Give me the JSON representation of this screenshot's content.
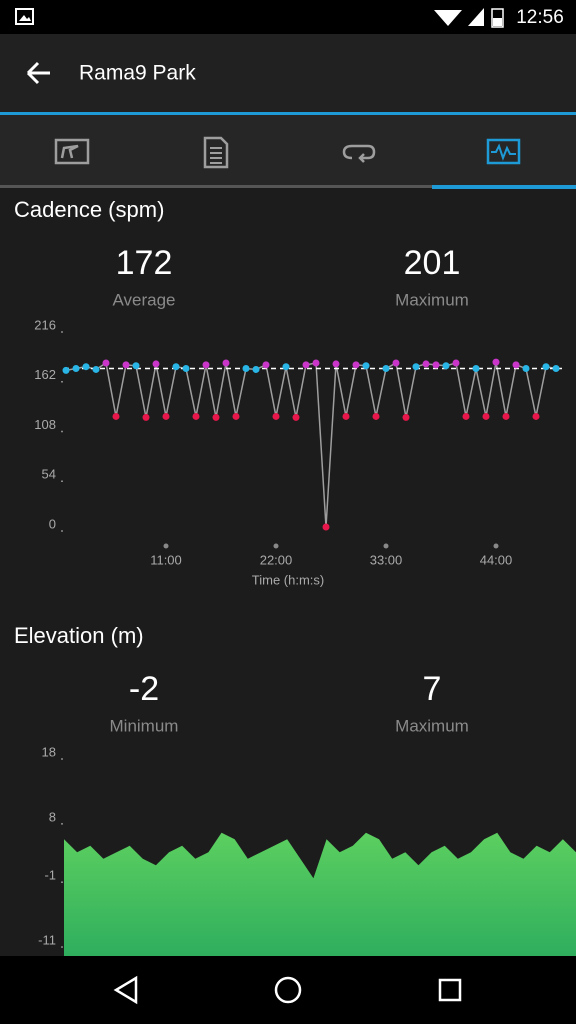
{
  "status_bar": {
    "time": "12:56"
  },
  "header": {
    "title": "Rama9 Park"
  },
  "chart_data": [
    {
      "type": "line",
      "title": "Cadence (spm)",
      "stats": [
        {
          "value": 172,
          "label": "Average"
        },
        {
          "value": 201,
          "label": "Maximum"
        }
      ],
      "x_label": "Time (h:m:s)",
      "x": [
        1,
        2,
        3,
        4,
        5,
        6,
        7,
        8,
        9,
        10,
        11,
        12,
        13,
        14,
        15,
        16,
        17,
        18,
        19,
        20,
        21,
        22,
        23,
        24,
        25,
        26,
        27,
        28,
        29,
        30,
        31,
        32,
        33,
        34,
        35,
        36,
        37,
        38,
        39,
        40,
        41,
        42,
        43,
        44,
        45,
        46,
        47,
        48,
        49,
        50
      ],
      "values": [
        170,
        172,
        174,
        171,
        178,
        120,
        176,
        175,
        119,
        177,
        120,
        174,
        172,
        120,
        176,
        119,
        178,
        120,
        172,
        171,
        176,
        120,
        174,
        119,
        176,
        178,
        0,
        177,
        120,
        176,
        175,
        120,
        172,
        178,
        119,
        174,
        177,
        176,
        175,
        178,
        120,
        172,
        120,
        179,
        120,
        176,
        172,
        120,
        174,
        172
      ],
      "point_colors": [
        "#29b6e6",
        "#29b6e6",
        "#29b6e6",
        "#29b6e6",
        "#c936c9",
        "#e8174b",
        "#c936c9",
        "#29b6e6",
        "#e8174b",
        "#c936c9",
        "#e8174b",
        "#29b6e6",
        "#29b6e6",
        "#e8174b",
        "#c936c9",
        "#e8174b",
        "#c936c9",
        "#e8174b",
        "#29b6e6",
        "#29b6e6",
        "#c936c9",
        "#e8174b",
        "#29b6e6",
        "#e8174b",
        "#c936c9",
        "#c936c9",
        "#e8174b",
        "#c936c9",
        "#e8174b",
        "#c936c9",
        "#29b6e6",
        "#e8174b",
        "#29b6e6",
        "#c936c9",
        "#e8174b",
        "#29b6e6",
        "#c936c9",
        "#c936c9",
        "#29b6e6",
        "#c936c9",
        "#e8174b",
        "#29b6e6",
        "#e8174b",
        "#c936c9",
        "#e8174b",
        "#c936c9",
        "#29b6e6",
        "#e8174b",
        "#29b6e6",
        "#29b6e6"
      ],
      "line_color": "#9e9e9e",
      "xlim": [
        0.8,
        50.6
      ],
      "xticks": [
        {
          "value": 11,
          "label": "11:00"
        },
        {
          "value": 22,
          "label": "22:00"
        },
        {
          "value": 33,
          "label": "33:00"
        },
        {
          "value": 44,
          "label": "44:00"
        }
      ],
      "ylim": [
        0,
        216
      ],
      "yticks": [
        0,
        54,
        108,
        162,
        216
      ]
    },
    {
      "type": "area",
      "title": "Elevation (m)",
      "stats": [
        {
          "value": -2,
          "label": "Minimum"
        },
        {
          "value": 7,
          "label": "Maximum"
        }
      ],
      "x": [
        0,
        1,
        2,
        3,
        4,
        5,
        6,
        7,
        8,
        9,
        10,
        11,
        12,
        13,
        14,
        15,
        16,
        17,
        18,
        19,
        20,
        21,
        22,
        23,
        24,
        25,
        26,
        27,
        28,
        29,
        30,
        31,
        32,
        33,
        34,
        35,
        36,
        37,
        38,
        39
      ],
      "values": [
        5,
        3,
        4,
        2,
        3,
        4,
        2,
        1,
        3,
        4,
        2,
        3,
        6,
        5,
        2,
        3,
        4,
        5,
        2,
        -1,
        5,
        3,
        4,
        6,
        5,
        2,
        3,
        1,
        3,
        4,
        2,
        3,
        5,
        6,
        3,
        2,
        4,
        3,
        5,
        3
      ],
      "color": "#5ccf5f",
      "xlim": [
        0,
        39
      ],
      "ylim": [
        -13,
        18
      ],
      "yticks": [
        -11,
        -1,
        8,
        18
      ]
    }
  ]
}
